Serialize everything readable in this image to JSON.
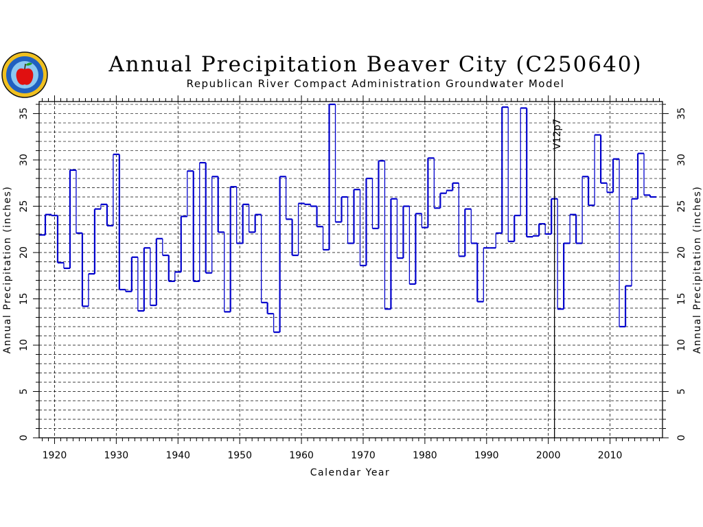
{
  "chart_data": {
    "type": "line",
    "title": "Annual Precipitation Beaver City (C250640)",
    "subtitle": "Republican River Compact Administration Groundwater Model",
    "xlabel": "Calendar Year",
    "ylabel": "Annual Precipitation (inches)",
    "xlim": [
      1917.5,
      2018.5
    ],
    "ylim": [
      0,
      36.3
    ],
    "x_ticks": [
      1920,
      1930,
      1940,
      1950,
      1960,
      1970,
      1980,
      1990,
      2000,
      2010
    ],
    "y_ticks": [
      0,
      5,
      10,
      15,
      20,
      25,
      30,
      35
    ],
    "grid": true,
    "grid_style": "dashed",
    "line_color": "#0000cc",
    "vline": {
      "x": 2001,
      "label": "V12p7"
    },
    "series": [
      {
        "years": [
          1918,
          1919,
          1920,
          1921,
          1922,
          1923,
          1924,
          1925,
          1926,
          1927,
          1928,
          1929,
          1930,
          1931,
          1932,
          1933,
          1934,
          1935,
          1936,
          1937,
          1938,
          1939,
          1940,
          1941,
          1942,
          1943,
          1944,
          1945,
          1946,
          1947,
          1948,
          1949,
          1950,
          1951,
          1952,
          1953,
          1954,
          1955,
          1956,
          1957,
          1958,
          1959,
          1960,
          1961,
          1962,
          1963,
          1964,
          1965,
          1966,
          1967,
          1968,
          1969,
          1970,
          1971,
          1972,
          1973,
          1974,
          1975,
          1976,
          1977,
          1978,
          1979,
          1980,
          1981,
          1982,
          1983,
          1984,
          1985,
          1986,
          1987,
          1988,
          1989,
          1990,
          1991,
          1992,
          1993,
          1994,
          1995,
          1996,
          1997,
          1998,
          1999,
          2000,
          2001,
          2002,
          2003,
          2004,
          2005,
          2006,
          2007,
          2008,
          2009,
          2010,
          2011,
          2012,
          2013,
          2014,
          2015,
          2016,
          2017
        ],
        "values": [
          21.9,
          24.1,
          24.0,
          18.9,
          18.3,
          28.9,
          22.1,
          14.2,
          17.7,
          24.7,
          25.2,
          22.9,
          30.6,
          16.0,
          15.8,
          19.5,
          13.7,
          20.5,
          14.3,
          21.5,
          19.7,
          16.9,
          17.9,
          23.9,
          28.8,
          16.9,
          29.7,
          17.8,
          28.2,
          22.2,
          13.6,
          27.1,
          21.0,
          25.2,
          22.2,
          24.1,
          14.6,
          13.4,
          11.4,
          28.2,
          23.6,
          19.7,
          25.3,
          25.2,
          25.0,
          22.8,
          20.3,
          36.0,
          23.3,
          26.0,
          21.0,
          26.8,
          18.6,
          28.0,
          22.6,
          29.9,
          13.9,
          25.8,
          19.4,
          25.0,
          16.6,
          24.2,
          22.7,
          30.2,
          24.8,
          26.4,
          26.7,
          27.5,
          19.6,
          24.7,
          21.0,
          14.7,
          20.5,
          20.5,
          22.1,
          35.7,
          21.2,
          24.0,
          35.6,
          21.7,
          21.8,
          23.1,
          22.0,
          25.8,
          13.9,
          21.0,
          24.1,
          21.0,
          28.2,
          25.1,
          32.7,
          27.5,
          26.5,
          30.1,
          12.0,
          16.4,
          25.8,
          30.7,
          26.2,
          26.0
        ]
      }
    ]
  }
}
